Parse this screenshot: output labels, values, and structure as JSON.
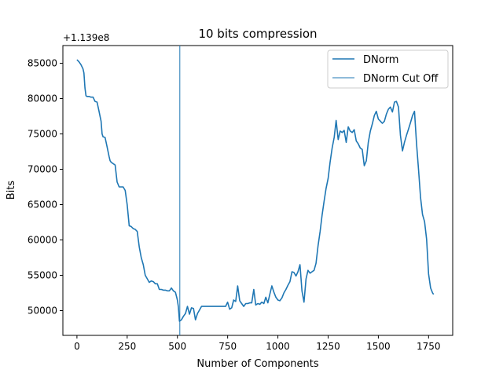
{
  "chart_data": {
    "type": "line",
    "title": "10 bits compression",
    "xlabel": "Number of Components",
    "ylabel": "Bits",
    "y_offset_label": "+1.139e8",
    "xlim": [
      -70,
      1870
    ],
    "ylim": [
      46500,
      87500
    ],
    "xticks": [
      0,
      250,
      500,
      750,
      1000,
      1250,
      1500,
      1750
    ],
    "yticks": [
      50000,
      55000,
      60000,
      65000,
      70000,
      75000,
      80000,
      85000
    ],
    "grid": false,
    "legend": {
      "placement": "top-right"
    },
    "cutoff_x": 512,
    "series": [
      {
        "name": "DNorm",
        "color": "#1f77b4",
        "x": [
          0,
          10,
          20,
          30,
          35,
          40,
          45,
          50,
          60,
          70,
          80,
          90,
          100,
          110,
          120,
          125,
          130,
          140,
          150,
          160,
          165,
          170,
          180,
          190,
          200,
          210,
          220,
          225,
          230,
          240,
          250,
          260,
          270,
          280,
          290,
          300,
          310,
          320,
          330,
          340,
          350,
          360,
          370,
          380,
          390,
          400,
          410,
          420,
          430,
          440,
          450,
          460,
          470,
          480,
          490,
          500,
          505,
          510,
          515,
          520,
          530,
          540,
          550,
          560,
          570,
          580,
          590,
          600,
          610,
          620,
          630,
          640,
          650,
          660,
          680,
          700,
          720,
          740,
          750,
          760,
          770,
          780,
          790,
          800,
          810,
          820,
          830,
          840,
          850,
          860,
          870,
          880,
          890,
          900,
          910,
          920,
          930,
          940,
          950,
          960,
          970,
          980,
          990,
          1000,
          1010,
          1020,
          1030,
          1040,
          1050,
          1060,
          1070,
          1080,
          1090,
          1100,
          1110,
          1120,
          1130,
          1140,
          1150,
          1160,
          1170,
          1180,
          1190,
          1200,
          1210,
          1220,
          1230,
          1240,
          1250,
          1260,
          1270,
          1280,
          1290,
          1300,
          1310,
          1320,
          1330,
          1340,
          1350,
          1360,
          1370,
          1380,
          1390,
          1400,
          1410,
          1420,
          1430,
          1440,
          1450,
          1460,
          1470,
          1480,
          1490,
          1500,
          1510,
          1520,
          1530,
          1540,
          1550,
          1560,
          1570,
          1580,
          1590,
          1600,
          1610,
          1620,
          1630,
          1640,
          1650,
          1660,
          1670,
          1680,
          1690,
          1700,
          1710,
          1720,
          1730,
          1740,
          1750,
          1760,
          1770,
          1775
        ],
        "y": [
          85500,
          85200,
          84800,
          84200,
          83600,
          81500,
          80400,
          80300,
          80300,
          80200,
          80200,
          79600,
          79500,
          78200,
          76800,
          75000,
          74600,
          74500,
          73200,
          71800,
          71200,
          71000,
          70800,
          70600,
          68200,
          67500,
          67500,
          67500,
          67500,
          67000,
          65000,
          62000,
          61900,
          61600,
          61500,
          61200,
          59000,
          57500,
          56500,
          55000,
          54500,
          54000,
          54200,
          54100,
          53800,
          53800,
          53000,
          53000,
          52900,
          52900,
          52800,
          52800,
          53200,
          52800,
          52600,
          51500,
          50500,
          48500,
          48600,
          48700,
          49200,
          49600,
          50600,
          49500,
          50400,
          50300,
          48700,
          49600,
          50100,
          50600,
          50600,
          50600,
          50600,
          50600,
          50600,
          50600,
          50600,
          50600,
          51200,
          50200,
          50400,
          51500,
          51300,
          53500,
          51400,
          51000,
          50600,
          51000,
          51000,
          51100,
          51100,
          53000,
          50800,
          51000,
          50900,
          51200,
          51000,
          51900,
          51100,
          52300,
          53500,
          52600,
          51900,
          51500,
          51400,
          51800,
          52500,
          53000,
          53600,
          54100,
          55500,
          55400,
          54900,
          55500,
          56500,
          52800,
          51200,
          54500,
          55700,
          55300,
          55500,
          55700,
          56700,
          59200,
          61200,
          63500,
          65500,
          67300,
          68700,
          71000,
          73000,
          74500,
          76900,
          74200,
          75400,
          75200,
          75500,
          73800,
          76000,
          75400,
          75200,
          75600,
          74000,
          73600,
          73000,
          72800,
          70500,
          71200,
          73800,
          75400,
          76400,
          77600,
          78200,
          77100,
          76800,
          76500,
          76800,
          77800,
          78500,
          78800,
          78100,
          79500,
          79600,
          78800,
          74800,
          72600,
          73800,
          74800,
          75700,
          76600,
          77600,
          78200,
          73600,
          70000,
          66000,
          63600,
          62600,
          60100,
          55200,
          53200,
          52500,
          52300
        ]
      },
      {
        "name": "DNorm Cut Off",
        "color": "#1f77b4"
      }
    ]
  }
}
